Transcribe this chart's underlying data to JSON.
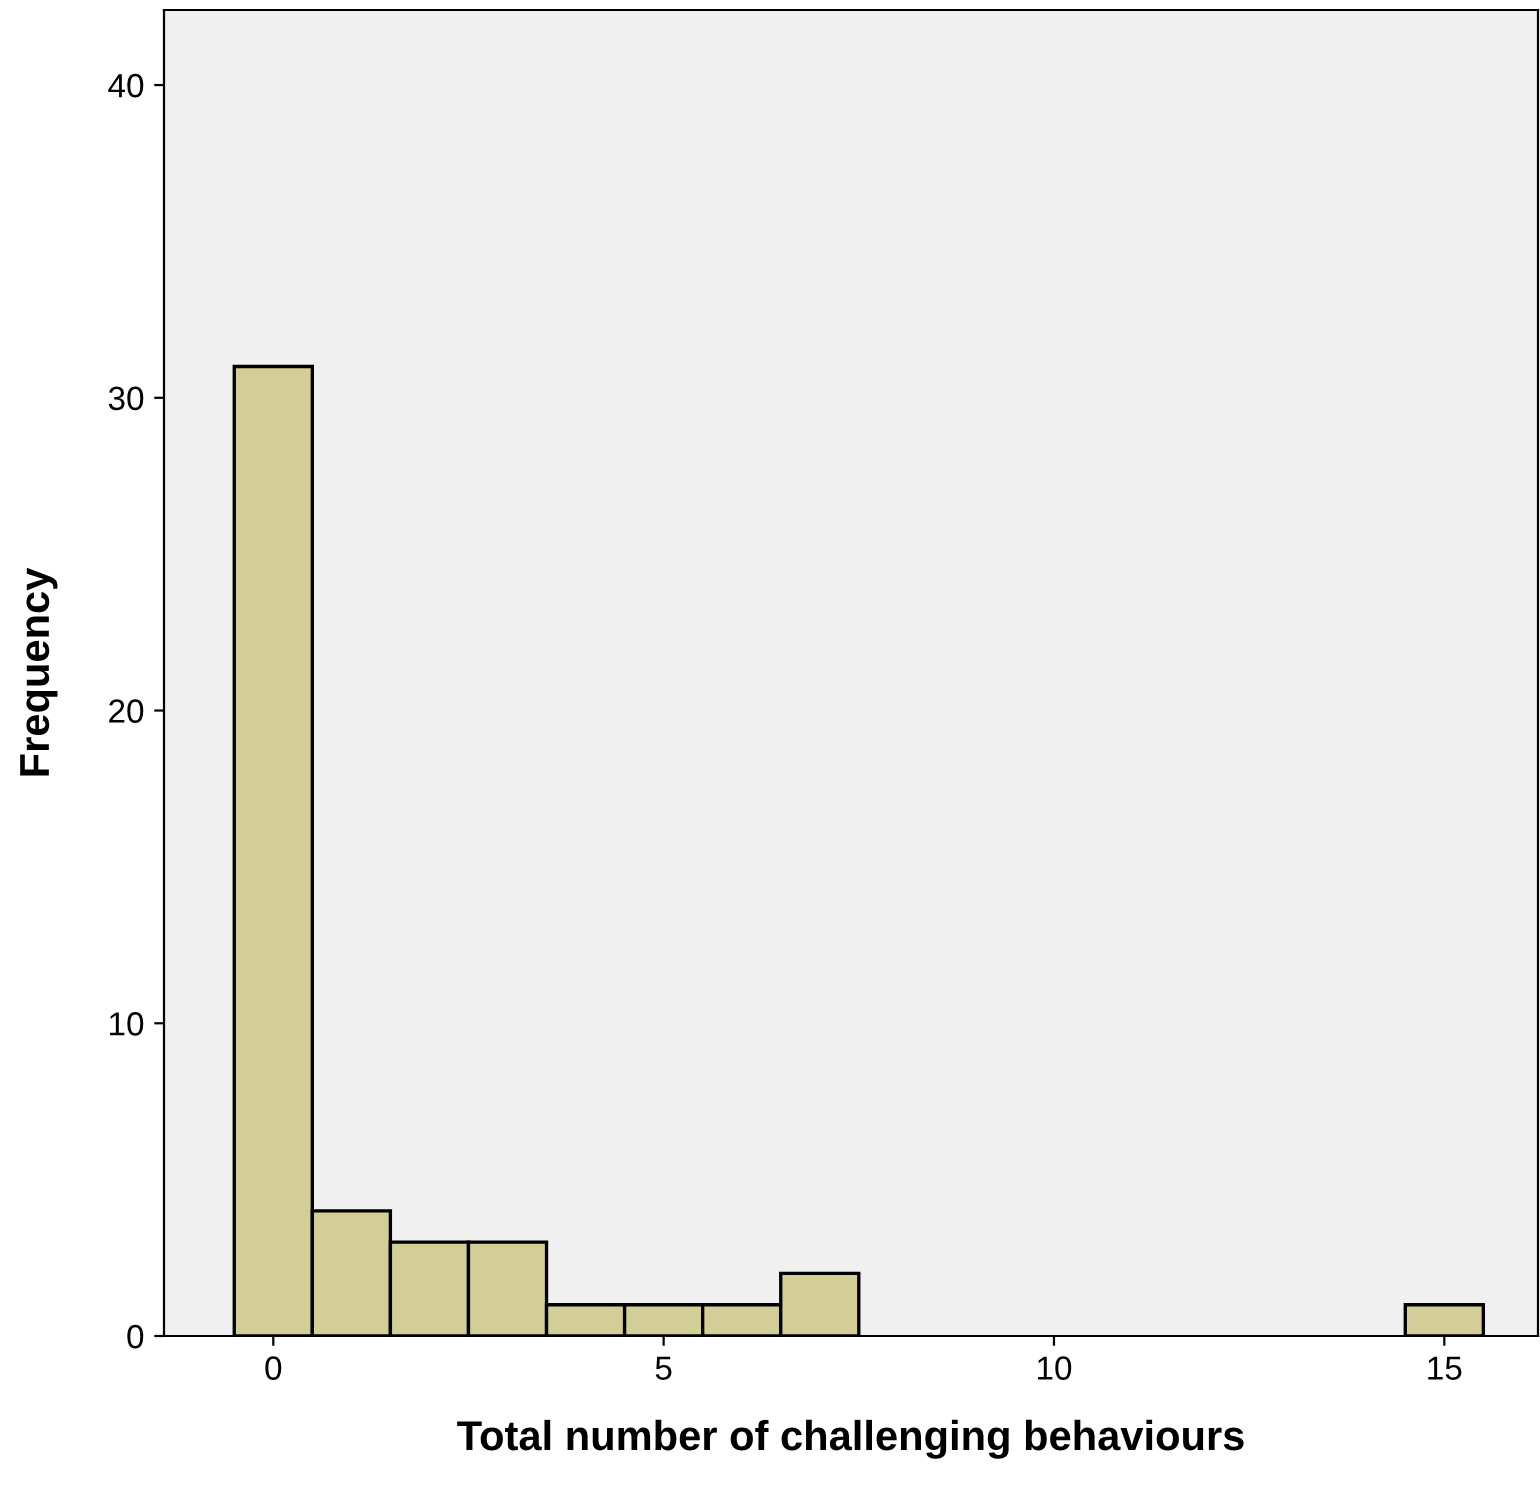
{
  "chart_data": {
    "type": "histogram",
    "xlabel": "Total number of challenging behaviours",
    "ylabel": "Frequency",
    "bins": [
      -0.5,
      0.5,
      1.5,
      2.5,
      3.5,
      4.5,
      5.5,
      6.5,
      7.5,
      8.5,
      9.5,
      10.5,
      11.5,
      12.5,
      13.5,
      14.5,
      15.5
    ],
    "values": [
      31,
      4,
      3,
      3,
      1,
      1,
      1,
      2,
      0,
      0,
      0,
      0,
      0,
      0,
      0,
      1
    ],
    "color": "#d3ce97",
    "xlim": [
      -1.4,
      16.2
    ],
    "ylim": [
      0,
      42.4
    ],
    "xticks": [
      0,
      5,
      10,
      15
    ],
    "yticks": [
      0,
      10,
      20,
      30,
      40
    ],
    "grid": false
  }
}
